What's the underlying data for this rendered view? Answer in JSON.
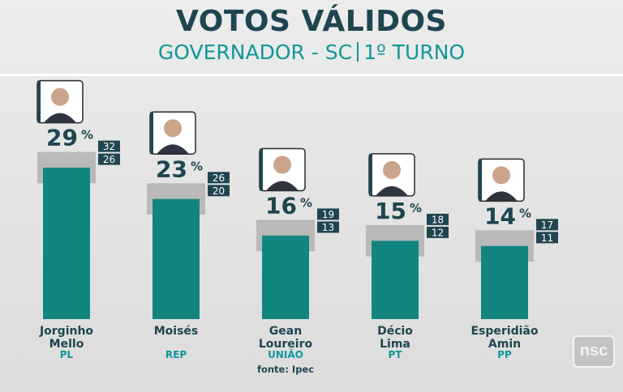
{
  "header": {
    "title": "VOTOS VÁLIDOS",
    "subtitle_left": "GOVERNADOR - SC",
    "subtitle_right": "1º TURNO"
  },
  "source": "fonte: Ipec",
  "broadcaster_logo": "nsc",
  "colors": {
    "bar": "#13857f",
    "margin_band": "#b2b2b2",
    "label_dark": "#1f4550",
    "accent": "#11969a",
    "badge": "#1f4550"
  },
  "chart_data": {
    "type": "bar",
    "title": "VOTOS VÁLIDOS",
    "subtitle": "GOVERNADOR - SC | 1º TURNO",
    "value_suffix": "%",
    "ylim": [
      0,
      40
    ],
    "categories": [
      "Jorginho Mello",
      "Moisés",
      "Gean Loureiro",
      "Décio Lima",
      "Esperidião Amin"
    ],
    "candidates": [
      {
        "name_lines": [
          "Jorginho",
          "Mello"
        ],
        "party": "PL",
        "value": 29,
        "upper": 32,
        "lower": 26,
        "photo": "candidate-photo"
      },
      {
        "name_lines": [
          "Moisés"
        ],
        "party": "REP",
        "value": 23,
        "upper": 26,
        "lower": 20,
        "photo": "candidate-photo"
      },
      {
        "name_lines": [
          "Gean",
          "Loureiro"
        ],
        "party": "UNIÃO",
        "value": 16,
        "upper": 19,
        "lower": 13,
        "photo": "candidate-photo"
      },
      {
        "name_lines": [
          "Décio",
          "Lima"
        ],
        "party": "PT",
        "value": 15,
        "upper": 18,
        "lower": 12,
        "photo": "candidate-photo"
      },
      {
        "name_lines": [
          "Esperidião",
          "Amin"
        ],
        "party": "PP",
        "value": 14,
        "upper": 17,
        "lower": 11,
        "photo": "candidate-photo"
      }
    ]
  }
}
